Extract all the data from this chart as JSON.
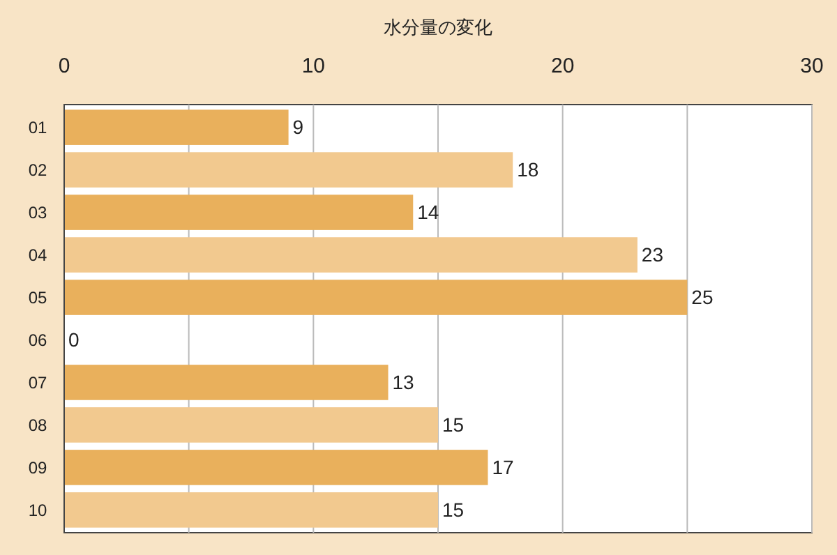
{
  "chart_data": {
    "type": "bar",
    "orientation": "horizontal",
    "title": "水分量の変化",
    "categories": [
      "01",
      "02",
      "03",
      "04",
      "05",
      "06",
      "07",
      "08",
      "09",
      "10"
    ],
    "values": [
      9,
      18,
      14,
      23,
      25,
      0,
      13,
      15,
      17,
      15
    ],
    "colors": [
      "#e9b05c",
      "#f2c98f",
      "#e9b05c",
      "#f2c98f",
      "#e9b05c",
      "#f2c98f",
      "#e9b05c",
      "#f2c98f",
      "#e9b05c",
      "#f2c98f"
    ],
    "xlim": [
      0,
      30
    ],
    "xticks": [
      0,
      {
        "value": 5,
        "label": null
      },
      10,
      {
        "value": 15,
        "label": null
      },
      20,
      {
        "value": 25,
        "label": null
      },
      30
    ],
    "grid": true,
    "data_labels": true
  }
}
